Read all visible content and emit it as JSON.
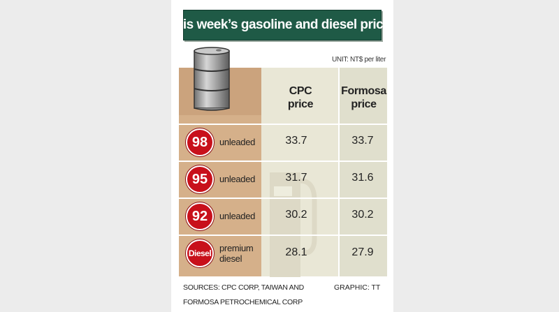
{
  "title": "This week’s gasoline and diesel prices",
  "unit": "UNIT: NT$ per liter",
  "sources": [
    "SOURCES: CPC CORP, TAIWAN AND",
    "FORMOSA PETROCHEMICAL CORP"
  ],
  "credit": "GRAPHIC: TT",
  "icons": [
    "oil-barrel-icon",
    "fuel-pump-icon"
  ],
  "colors": {
    "title_bg": "#1f5a46",
    "badge": "#c8101b",
    "tan": "#d5b08a"
  },
  "chart_data": {
    "type": "table",
    "columns": [
      {
        "line1": "CPC",
        "line2": "price"
      },
      {
        "line1": "Formosa",
        "line2": "price"
      }
    ],
    "rows": [
      {
        "badge": "98",
        "type": [
          "unleaded"
        ],
        "values": [
          "33.7",
          "33.7"
        ]
      },
      {
        "badge": "95",
        "type": [
          "unleaded"
        ],
        "values": [
          "31.7",
          "31.6"
        ]
      },
      {
        "badge": "92",
        "type": [
          "unleaded"
        ],
        "values": [
          "30.2",
          "30.2"
        ]
      },
      {
        "badge": "Diesel",
        "type": [
          "premium",
          "diesel"
        ],
        "values": [
          "28.1",
          "27.9"
        ]
      }
    ]
  }
}
